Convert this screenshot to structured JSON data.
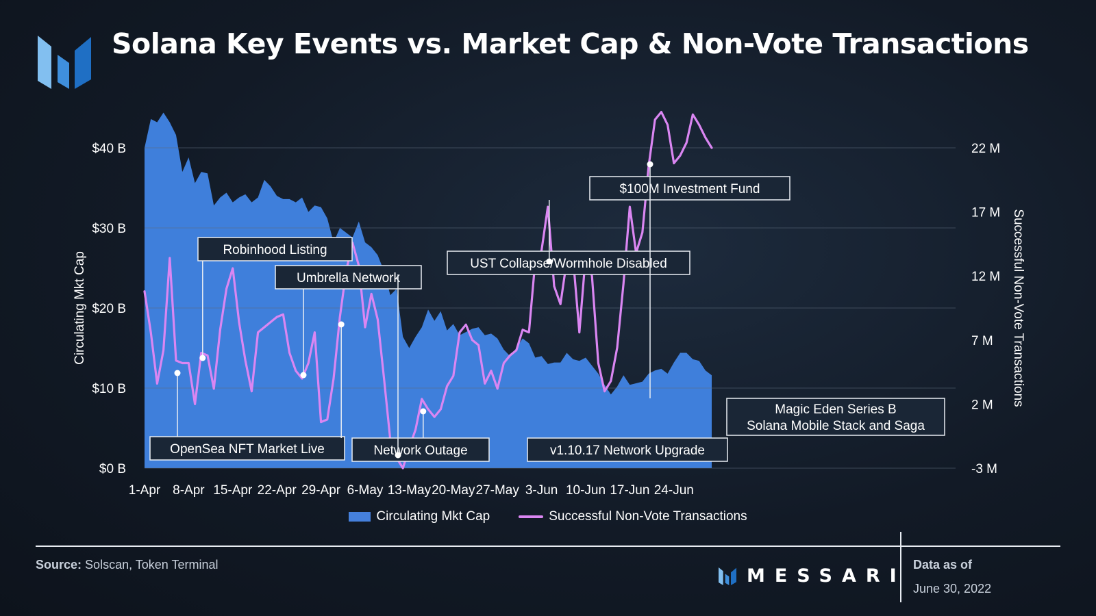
{
  "header": {
    "title": "Solana Key Events vs. Market Cap & Non-Vote Transactions"
  },
  "colors": {
    "area": "#3f7fdb",
    "line": "#da86f2",
    "grid": "#5d6b7d",
    "callout_bg": "#1a2636",
    "callout_border": "#e9edf3"
  },
  "chart_data": {
    "type": "area+line",
    "title": "Solana Key Events vs. Market Cap & Non-Vote Transactions",
    "x_tick_labels": [
      "1-Apr",
      "8-Apr",
      "15-Apr",
      "22-Apr",
      "29-Apr",
      "6-May",
      "13-May",
      "20-May",
      "27-May",
      "3-Jun",
      "10-Jun",
      "17-Jun",
      "24-Jun"
    ],
    "x_tick_day_index": [
      0,
      7,
      14,
      21,
      28,
      35,
      42,
      49,
      56,
      63,
      70,
      77,
      84
    ],
    "y_left": {
      "label": "Circulating Mkt Cap",
      "min": 0,
      "max": 40,
      "unit": "B",
      "ticks": [
        "$0 B",
        "$10 B",
        "$20 B",
        "$30 B",
        "$40 B"
      ],
      "tick_values": [
        0,
        10,
        20,
        30,
        40
      ]
    },
    "y_right": {
      "label": "Successful Non-Vote Transactions",
      "min": -3,
      "max": 22,
      "unit": "M",
      "ticks": [
        "-3 M",
        "2 M",
        "7 M",
        "12 M",
        "17 M",
        "22 M"
      ],
      "tick_values": [
        -3,
        2,
        7,
        12,
        17,
        22
      ]
    },
    "grid": true,
    "legend": [
      "Circulating Mkt Cap",
      "Successful Non-Vote Transactions"
    ],
    "legend_position": "bottom-center",
    "series": [
      {
        "name": "Circulating Mkt Cap",
        "type": "area",
        "axis": "left",
        "values": [
          40.0,
          43.6,
          43.2,
          44.4,
          43.2,
          41.6,
          37.0,
          38.8,
          35.6,
          37.0,
          36.8,
          32.8,
          33.8,
          34.4,
          33.2,
          33.8,
          34.2,
          33.2,
          33.8,
          36.0,
          35.2,
          34.0,
          33.6,
          33.6,
          33.2,
          33.8,
          32.0,
          32.8,
          32.6,
          31.2,
          28.2,
          30.0,
          29.4,
          28.8,
          30.8,
          28.2,
          27.6,
          26.6,
          24.6,
          21.6,
          22.4,
          16.4,
          15.0,
          16.4,
          17.6,
          19.8,
          18.4,
          19.6,
          17.2,
          18.0,
          16.6,
          17.0,
          17.4,
          17.6,
          16.6,
          16.8,
          16.2,
          14.8,
          14.0,
          15.0,
          16.2,
          15.6,
          13.8,
          14.0,
          13.0,
          13.2,
          13.2,
          14.4,
          13.6,
          13.4,
          13.8,
          12.8,
          11.8,
          10.4,
          9.2,
          10.2,
          11.6,
          10.4,
          10.6,
          10.8,
          11.8,
          12.2,
          12.4,
          11.8,
          13.2,
          14.4,
          14.4,
          13.6,
          13.4,
          12.2,
          11.6
        ]
      },
      {
        "name": "Successful Non-Vote Transactions",
        "type": "line",
        "axis": "right",
        "values": [
          10.8,
          7.6,
          3.6,
          6.2,
          13.4,
          5.4,
          5.2,
          5.2,
          2.0,
          6.0,
          5.8,
          3.2,
          7.8,
          11.0,
          12.6,
          8.4,
          5.4,
          3.0,
          7.6,
          8.0,
          8.4,
          8.8,
          9.0,
          6.0,
          4.6,
          4.0,
          5.2,
          7.6,
          0.6,
          0.8,
          4.0,
          8.8,
          12.4,
          14.6,
          12.8,
          8.0,
          10.6,
          8.6,
          4.0,
          -0.8,
          -2.2,
          -3.0,
          -1.4,
          0.0,
          2.4,
          1.6,
          1.0,
          1.6,
          3.4,
          4.2,
          7.6,
          8.2,
          7.0,
          6.6,
          3.6,
          4.6,
          3.2,
          5.2,
          5.8,
          6.2,
          7.8,
          7.6,
          13.2,
          14.0,
          17.4,
          11.2,
          9.8,
          13.2,
          13.4,
          7.6,
          13.6,
          12.0,
          5.2,
          3.0,
          3.8,
          6.4,
          11.4,
          17.4,
          13.8,
          15.4,
          20.6,
          24.2,
          24.8,
          23.8,
          20.8,
          21.4,
          22.4,
          24.6,
          23.8,
          22.8,
          22.0
        ]
      }
    ],
    "annotations": [
      {
        "label": "OpenSea NFT Market Live",
        "day": 5
      },
      {
        "label": "Robinhood Listing",
        "day": 9
      },
      {
        "label": "Umbrella Network",
        "day": 25
      },
      {
        "label": "Network Outage",
        "day": 31
      },
      {
        "label": "UST Collapse/Wormhole Disabled",
        "day": 40
      },
      {
        "label": "v1.10.17 Network Upgrade",
        "day": 44
      },
      {
        "label": "$100M Investment Fund",
        "day": 64
      },
      {
        "label": "Magic Eden Series B",
        "label2": "Solana Mobile Stack and Saga",
        "day": 80
      }
    ]
  },
  "footer": {
    "source_label": "Source:",
    "source_text": "Solscan, Token Terminal",
    "brand": "MESSARI",
    "asof_label": "Data as of",
    "asof_date": "June 30, 2022"
  }
}
